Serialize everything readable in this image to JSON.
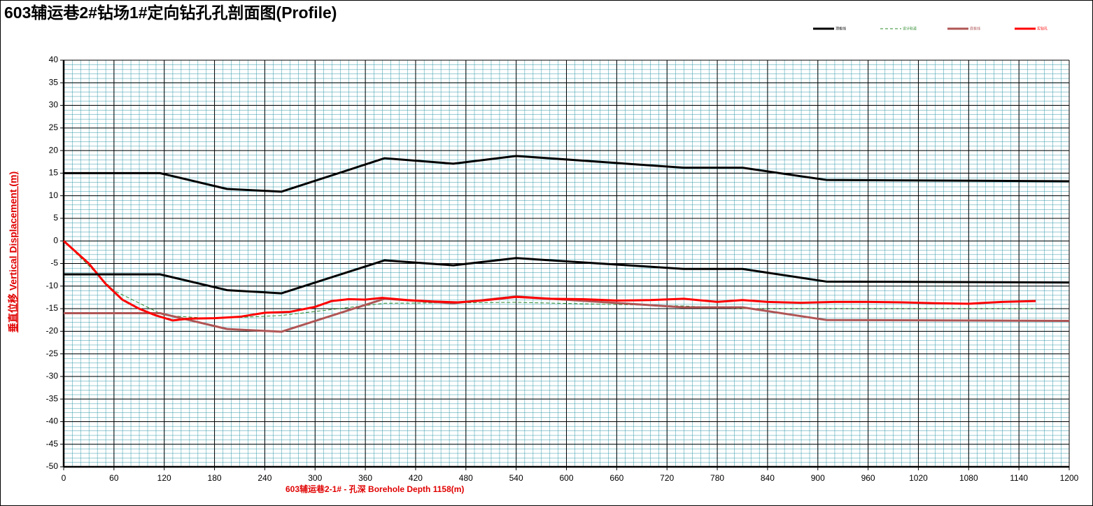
{
  "chart_data": {
    "type": "line",
    "title": "603辅运巷2#钻场1#定向钻孔孔剖面图(Profile)",
    "x_label": "603辅运巷2-1# - 孔深   Borehole Depth 1158(m)",
    "y_label": "垂直位移    Vertical Displacement (m)",
    "xlim": [
      0,
      1200
    ],
    "ylim": [
      -50,
      40
    ],
    "xticks": [
      0,
      60,
      120,
      180,
      240,
      300,
      360,
      420,
      480,
      540,
      600,
      660,
      720,
      780,
      840,
      900,
      960,
      1020,
      1080,
      1140,
      1200
    ],
    "yticks": [
      -50,
      -45,
      -40,
      -35,
      -30,
      -25,
      -20,
      -15,
      -10,
      -5,
      0,
      5,
      10,
      15,
      20,
      25,
      30,
      35,
      40
    ],
    "grid": true,
    "legend": "top-right",
    "series": [
      {
        "name": "顶板线",
        "color": "#000000",
        "width": 3,
        "x": [
          0,
          115,
          195,
          260,
          383,
          465,
          540,
          740,
          810,
          910,
          1200
        ],
        "values": [
          15,
          15,
          11.5,
          10.9,
          18.3,
          17.1,
          18.8,
          16.2,
          16.2,
          13.5,
          13.2
        ]
      },
      {
        "name": "设计轨迹",
        "color": "#2e8b2e",
        "width": 1,
        "dashed": true,
        "x": [
          0,
          60,
          120,
          180,
          260,
          383,
          540,
          740,
          810,
          1160
        ],
        "values": [
          0,
          -11,
          -16.5,
          -17.2,
          -16.5,
          -13.8,
          -13.6,
          -14.4,
          -15,
          -15
        ]
      },
      {
        "name": "底板线",
        "color": "#b05555",
        "width": 3,
        "x": [
          0,
          115,
          195,
          260,
          383,
          465,
          540,
          740,
          810,
          910,
          1200
        ],
        "values": [
          -16,
          -16,
          -19.5,
          -20.1,
          -12.8,
          -13.8,
          -12.3,
          -14.7,
          -14.7,
          -17.5,
          -17.7
        ]
      },
      {
        "name": "实钻孔",
        "color": "#ff0000",
        "width": 3,
        "x": [
          0,
          30,
          50,
          70,
          90,
          110,
          130,
          150,
          180,
          210,
          240,
          270,
          300,
          320,
          340,
          360,
          380,
          410,
          440,
          470,
          500,
          540,
          580,
          620,
          660,
          700,
          740,
          780,
          810,
          840,
          880,
          920,
          960,
          1000,
          1040,
          1080,
          1120,
          1160
        ],
        "values": [
          0,
          -5,
          -9.5,
          -13,
          -15,
          -16.5,
          -17.6,
          -17.2,
          -17.1,
          -16.8,
          -15.9,
          -15.7,
          -14.6,
          -13.3,
          -12.9,
          -13,
          -12.6,
          -13.1,
          -13.4,
          -13.6,
          -13.2,
          -12.4,
          -12.8,
          -12.9,
          -13.2,
          -13.1,
          -12.8,
          -13.5,
          -13.1,
          -13.5,
          -13.7,
          -13.5,
          -13.5,
          -13.6,
          -13.8,
          -13.9,
          -13.5,
          -13.3
        ]
      },
      {
        "color": "#000000",
        "width": 3,
        "x": [
          0,
          115,
          195,
          260,
          383,
          465,
          540,
          740,
          810,
          910,
          1200
        ],
        "values": [
          -7.4,
          -7.4,
          -10.9,
          -11.6,
          -4.3,
          -5.4,
          -3.8,
          -6.2,
          -6.2,
          -9,
          -9.2
        ]
      }
    ]
  }
}
